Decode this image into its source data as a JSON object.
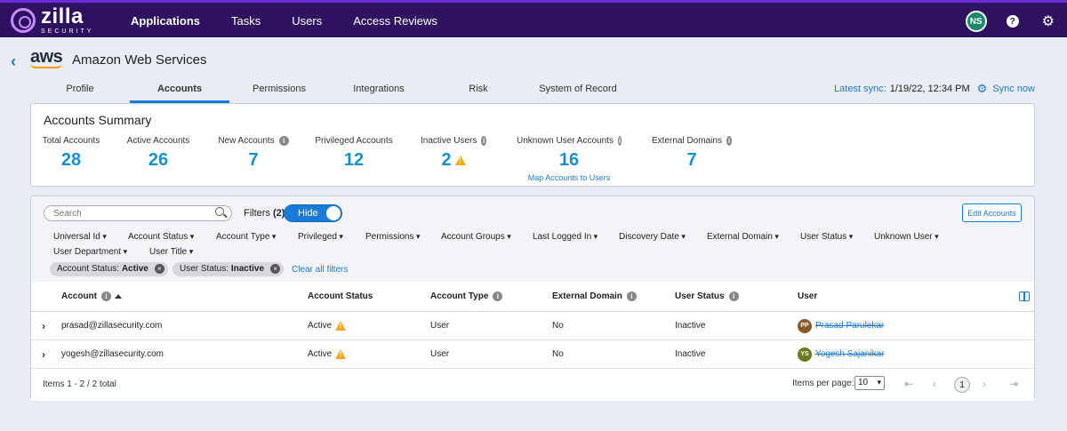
{
  "brand": {
    "name": "zilla",
    "tagline": "SECURITY"
  },
  "nav": {
    "items": [
      {
        "label": "Applications",
        "active": true
      },
      {
        "label": "Tasks",
        "active": false
      },
      {
        "label": "Users",
        "active": false
      },
      {
        "label": "Access Reviews",
        "active": false
      }
    ],
    "user_initials": "NS",
    "help": "?"
  },
  "header": {
    "logo_text": "aws",
    "title": "Amazon Web Services"
  },
  "tabs": [
    {
      "label": "Profile",
      "active": false
    },
    {
      "label": "Accounts",
      "active": true
    },
    {
      "label": "Permissions",
      "active": false
    },
    {
      "label": "Integrations",
      "active": false
    },
    {
      "label": "Risk",
      "active": false
    },
    {
      "label": "System of Record",
      "active": false
    }
  ],
  "sync": {
    "label": "Latest sync:",
    "value": "1/19/22, 12:34 PM",
    "action": "Sync now"
  },
  "summary": {
    "title": "Accounts Summary",
    "stats": [
      {
        "label": "Total Accounts",
        "value": "28"
      },
      {
        "label": "Active Accounts",
        "value": "26"
      },
      {
        "label": "New Accounts",
        "value": "7"
      },
      {
        "label": "Privileged Accounts",
        "value": "12"
      },
      {
        "label": "Inactive Users",
        "value": "2"
      },
      {
        "label": "Unknown User Accounts",
        "value": "16",
        "link": "Map Accounts to Users"
      },
      {
        "label": "External Domains",
        "value": "7"
      }
    ]
  },
  "toolbar": {
    "search_placeholder": "Search",
    "filters_label": "Filters",
    "filters_count": "(2)",
    "toggle_label": "Hide",
    "edit_button": "Edit Accounts"
  },
  "filter_dropdowns": [
    "Universal Id",
    "Account Status",
    "Account Type",
    "Privileged",
    "Permissions",
    "Account Groups",
    "Last Logged In",
    "Discovery Date",
    "External Domain",
    "User Status",
    "Unknown User",
    "User Department",
    "User Title"
  ],
  "active_filters": [
    {
      "key": "Account Status:",
      "value": "Active"
    },
    {
      "key": "User Status:",
      "value": "Inactive"
    }
  ],
  "clear_all": "Clear all filters",
  "table": {
    "columns": [
      "Account",
      "Account Status",
      "Account Type",
      "External Domain",
      "User Status",
      "User"
    ],
    "rows": [
      {
        "account": "prasad@zillasecurity.com",
        "status": "Active",
        "type": "User",
        "external": "No",
        "user_status": "Inactive",
        "user_initials": "PP",
        "user_name": "Prasad Parulekar",
        "avatar_color": "#8a5a2b"
      },
      {
        "account": "yogesh@zillasecurity.com",
        "status": "Active",
        "type": "User",
        "external": "No",
        "user_status": "Inactive",
        "user_initials": "YS",
        "user_name": "Yogesh Sajanikar",
        "avatar_color": "#6b7a1a"
      }
    ]
  },
  "footer": {
    "items_label": "Items 1 - 2 / 2 total",
    "per_page_label": "Items per page:",
    "per_page_value": "10",
    "current_page": "1"
  }
}
